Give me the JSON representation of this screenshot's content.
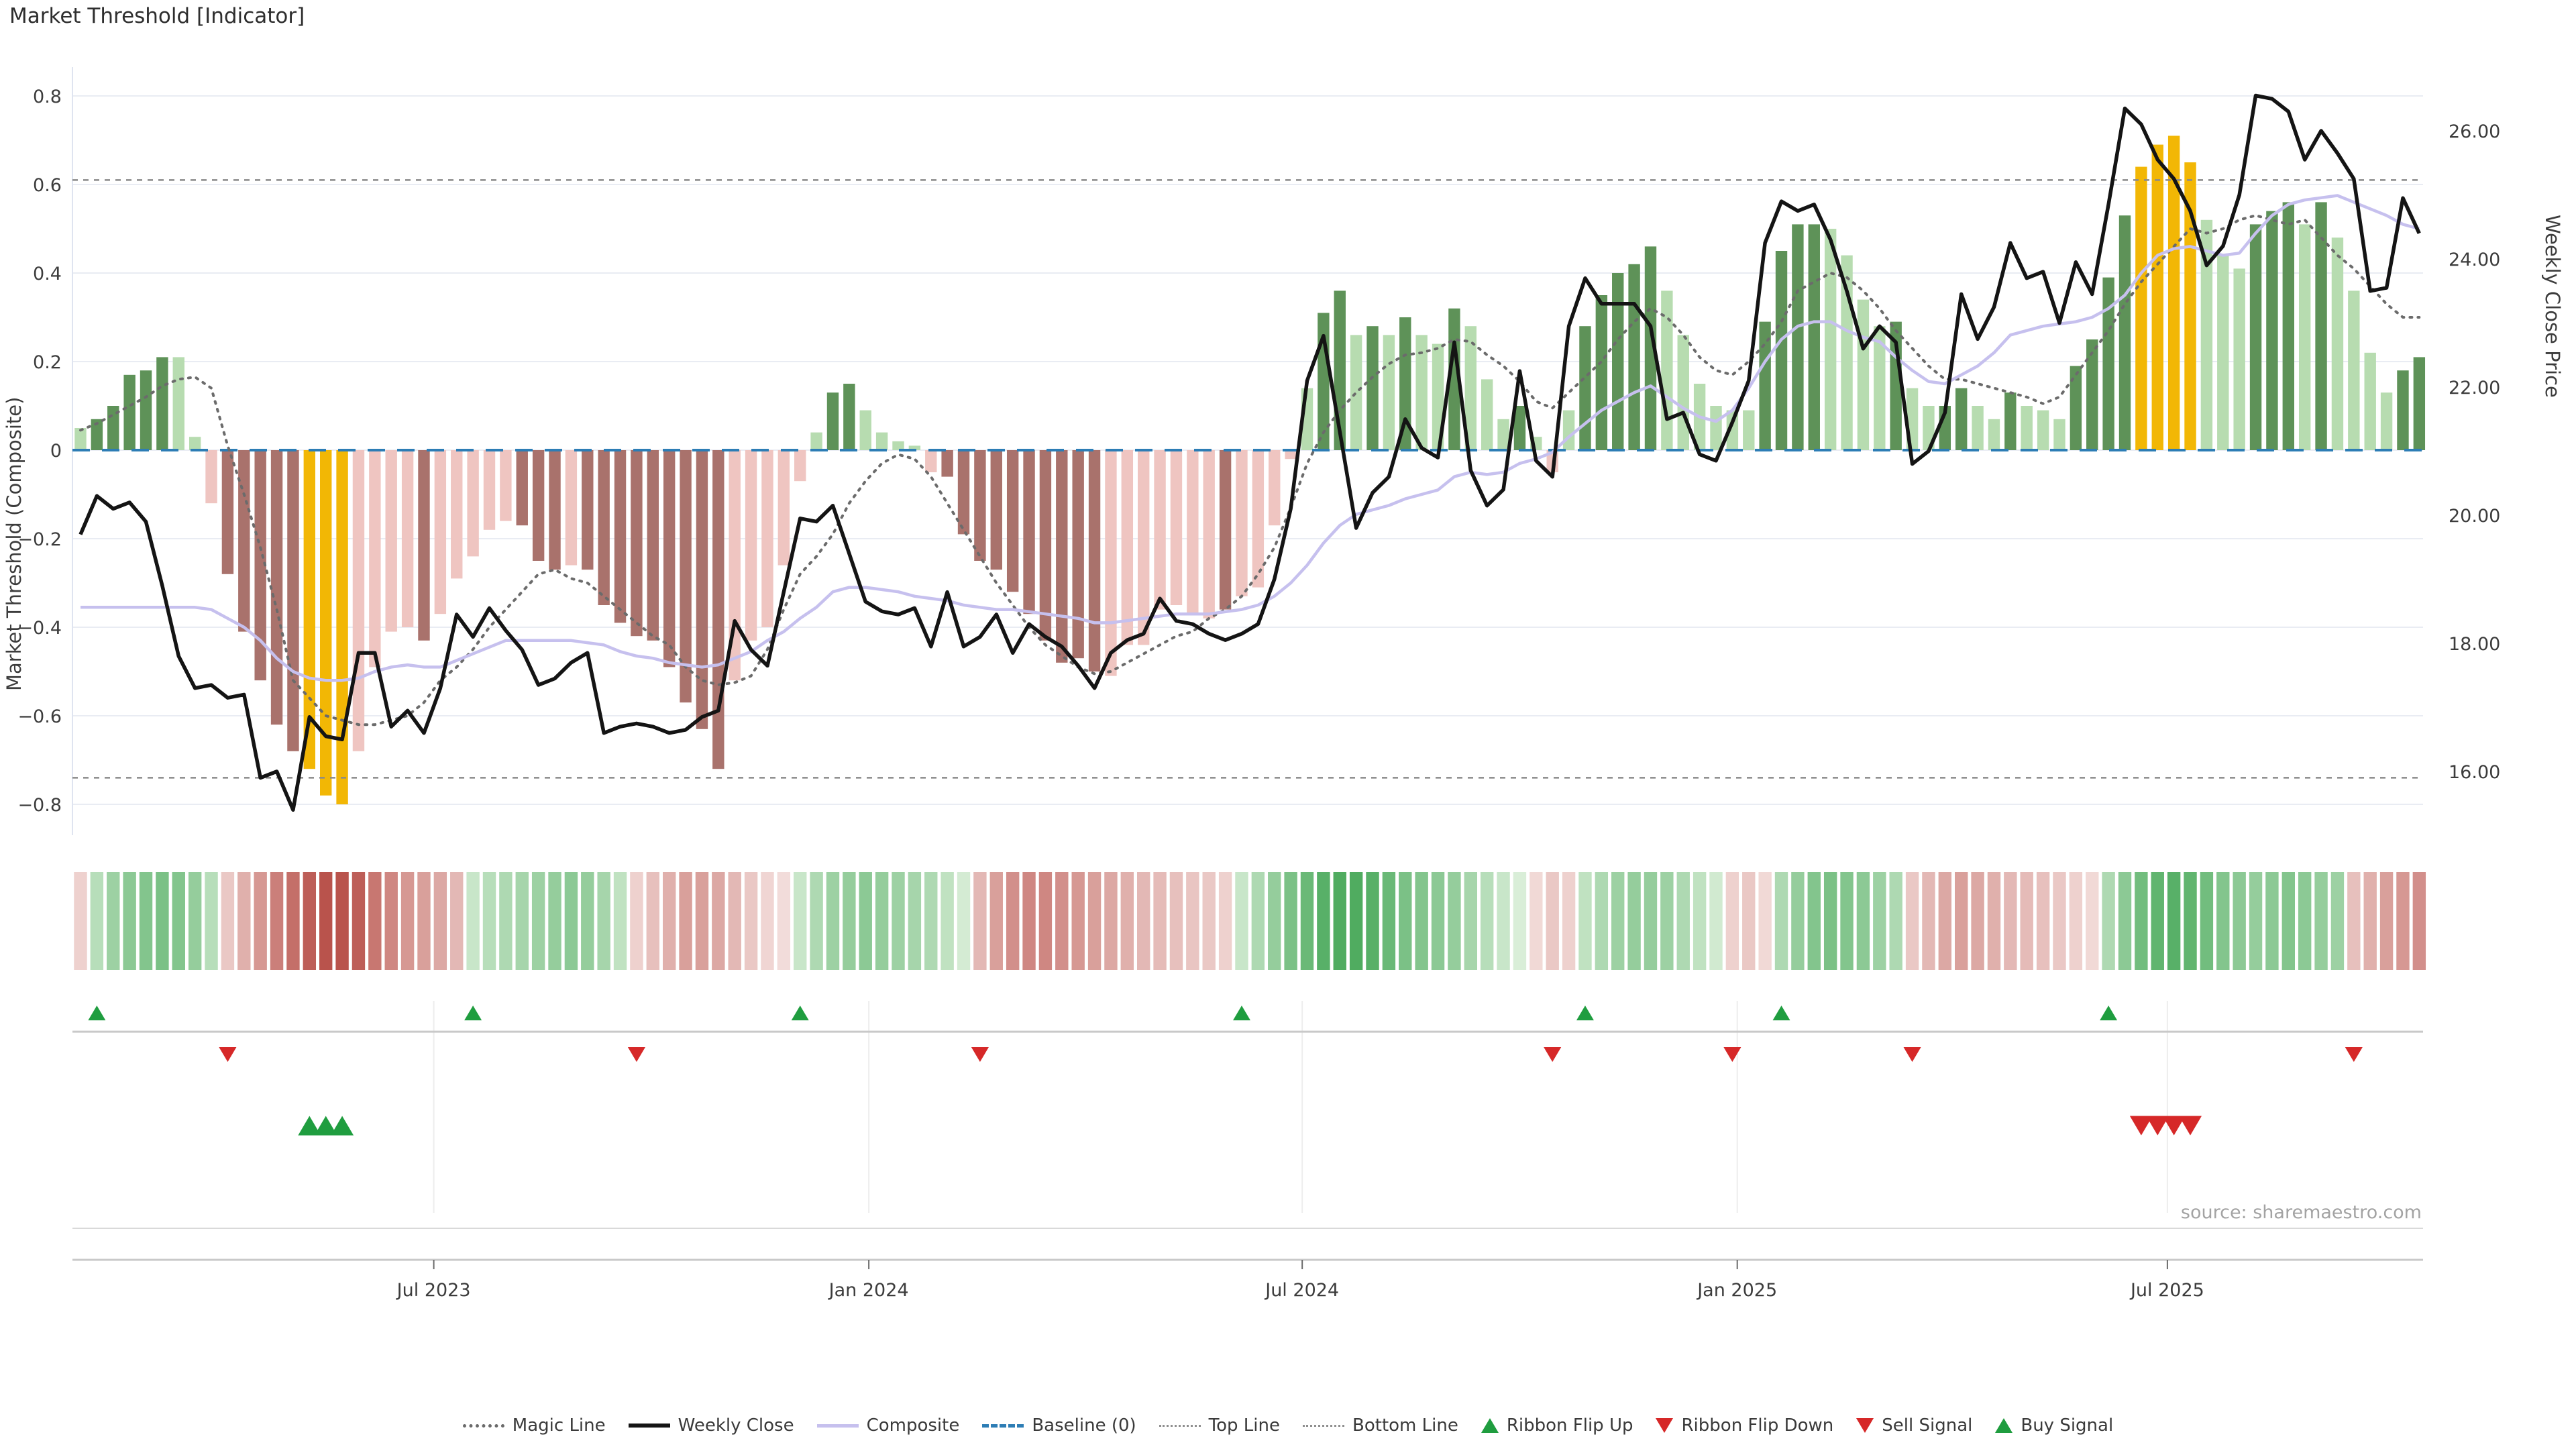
{
  "title": "Market Threshold [Indicator]",
  "source": "source: sharemaestro.com",
  "axes": {
    "y_left_title": "Market Threshold (Composite)",
    "y_right_title": "Weekly Close Price",
    "y_left_ticks": [
      0.8,
      0.6,
      0.4,
      0.2,
      0.0,
      -0.2,
      -0.4,
      -0.6,
      -0.8
    ],
    "y_left_tick_labels": [
      "0.8",
      "0.6",
      "0.4",
      "0.2",
      "0",
      "−0.2",
      "−0.4",
      "−0.6",
      "−0.8"
    ],
    "y_right_ticks": [
      26,
      24,
      22,
      20,
      18,
      16
    ],
    "y_right_tick_labels": [
      "26.00",
      "24.00",
      "22.00",
      "20.00",
      "18.00",
      "16.00"
    ],
    "x_tick_labels": [
      "Jul 2023",
      "Jan 2024",
      "Jul 2024",
      "Jan 2025",
      "Jul 2025"
    ],
    "x_tick_weeks": [
      21.6,
      48.2,
      74.7,
      101.3,
      127.6
    ]
  },
  "legend": [
    {
      "key": "magic-line",
      "label": "Magic Line",
      "swatch": "sw-magic"
    },
    {
      "key": "weekly-close",
      "label": "Weekly Close",
      "swatch": "sw-close"
    },
    {
      "key": "composite",
      "label": "Composite",
      "swatch": "sw-comp"
    },
    {
      "key": "baseline",
      "label": "Baseline (0)",
      "swatch": "sw-base"
    },
    {
      "key": "top-line",
      "label": "Top Line",
      "swatch": "sw-top"
    },
    {
      "key": "bottom-line",
      "label": "Bottom Line",
      "swatch": "sw-bottom"
    },
    {
      "key": "ribbon-flip-up",
      "label": "Ribbon Flip Up",
      "swatch": "tri-up"
    },
    {
      "key": "ribbon-flip-down",
      "label": "Ribbon Flip Down",
      "swatch": "tri-down"
    },
    {
      "key": "sell-signal",
      "label": "Sell Signal",
      "swatch": "tri-down"
    },
    {
      "key": "buy-signal",
      "label": "Buy Signal",
      "swatch": "tri-up"
    }
  ],
  "colors": {
    "bar_light_green": "#b7dcb0",
    "bar_dark_green": "#5e9258",
    "bar_light_red": "#efc5c1",
    "bar_dark_red": "#a9726c",
    "bar_gold": "#f2b705",
    "weekly_close": "#141414",
    "composite": "#c6c0ee",
    "magic": "#6b6b6b",
    "baseline": "#2d7db5",
    "threshold_lines": "#8a8a8a",
    "grid": "#e9ecf3",
    "signal_green": "#1f9d3f",
    "signal_red": "#d62828",
    "ribbon_green_max": "#36a04a",
    "ribbon_red_max": "#b3463f"
  },
  "chart_data": {
    "type": "mixed (weekly bars + lines + signal ribbon)",
    "title": "Market Threshold [Indicator]",
    "weeks": 144,
    "x_range_note": "weekly observations, Feb 2023 through Oct 2025",
    "ylim_left": [
      -0.9,
      0.87
    ],
    "ylim_right": [
      15.0,
      26.6
    ],
    "baseline": 0,
    "top_line": 0.61,
    "bottom_line": -0.74,
    "bar_values": [
      0.05,
      0.07,
      0.1,
      0.17,
      0.18,
      0.21,
      0.21,
      0.03,
      -0.12,
      -0.28,
      -0.41,
      -0.52,
      -0.62,
      -0.68,
      -0.72,
      -0.78,
      -0.8,
      -0.68,
      -0.49,
      -0.41,
      -0.4,
      -0.43,
      -0.37,
      -0.29,
      -0.24,
      -0.18,
      -0.16,
      -0.17,
      -0.25,
      -0.27,
      -0.26,
      -0.27,
      -0.35,
      -0.39,
      -0.42,
      -0.43,
      -0.49,
      -0.57,
      -0.63,
      -0.72,
      -0.52,
      -0.43,
      -0.4,
      -0.26,
      -0.07,
      0.04,
      0.13,
      0.15,
      0.09,
      0.04,
      0.02,
      0.01,
      -0.05,
      -0.06,
      -0.19,
      -0.25,
      -0.27,
      -0.32,
      -0.37,
      -0.43,
      -0.48,
      -0.47,
      -0.5,
      -0.51,
      -0.44,
      -0.44,
      -0.36,
      -0.35,
      -0.37,
      -0.38,
      -0.36,
      -0.33,
      -0.31,
      -0.17,
      -0.02,
      0.14,
      0.31,
      0.36,
      0.26,
      0.28,
      0.26,
      0.3,
      0.26,
      0.24,
      0.32,
      0.28,
      0.16,
      0.07,
      0.1,
      0.03,
      -0.05,
      0.09,
      0.28,
      0.35,
      0.4,
      0.42,
      0.46,
      0.36,
      0.26,
      0.15,
      0.1,
      0.09,
      0.09,
      0.29,
      0.45,
      0.51,
      0.51,
      0.5,
      0.44,
      0.34,
      0.28,
      0.29,
      0.14,
      0.1,
      0.1,
      0.14,
      0.1,
      0.07,
      0.13,
      0.1,
      0.09,
      0.07,
      0.19,
      0.25,
      0.39,
      0.53,
      0.64,
      0.69,
      0.71,
      0.65,
      0.52,
      0.44,
      0.41,
      0.51,
      0.54,
      0.56,
      0.51,
      0.56,
      0.48,
      0.36,
      0.22,
      0.13,
      0.18,
      0.21
    ],
    "bar_colors": [
      "lg",
      "dg",
      "dg",
      "dg",
      "dg",
      "dg",
      "lg",
      "lg",
      "lr",
      "dr",
      "dr",
      "dr",
      "dr",
      "dr",
      "au",
      "au",
      "au",
      "lr",
      "lr",
      "lr",
      "lr",
      "dr",
      "lr",
      "lr",
      "lr",
      "lr",
      "lr",
      "dr",
      "dr",
      "dr",
      "lr",
      "dr",
      "dr",
      "dr",
      "dr",
      "dr",
      "dr",
      "dr",
      "dr",
      "dr",
      "lr",
      "lr",
      "lr",
      "lr",
      "lr",
      "lg",
      "dg",
      "dg",
      "lg",
      "lg",
      "lg",
      "lg",
      "lr",
      "dr",
      "dr",
      "dr",
      "dr",
      "dr",
      "dr",
      "dr",
      "dr",
      "dr",
      "dr",
      "lr",
      "lr",
      "lr",
      "lr",
      "lr",
      "lr",
      "lr",
      "dr",
      "lr",
      "lr",
      "lr",
      "lr",
      "lg",
      "dg",
      "dg",
      "lg",
      "dg",
      "lg",
      "dg",
      "lg",
      "lg",
      "dg",
      "lg",
      "lg",
      "lg",
      "dg",
      "lg",
      "lr",
      "lg",
      "dg",
      "dg",
      "dg",
      "dg",
      "dg",
      "lg",
      "lg",
      "lg",
      "lg",
      "lg",
      "lg",
      "dg",
      "dg",
      "dg",
      "dg",
      "lg",
      "lg",
      "lg",
      "lg",
      "dg",
      "lg",
      "lg",
      "dg",
      "dg",
      "lg",
      "lg",
      "dg",
      "lg",
      "lg",
      "lg",
      "dg",
      "dg",
      "dg",
      "dg",
      "au",
      "au",
      "au",
      "au",
      "lg",
      "lg",
      "lg",
      "dg",
      "dg",
      "dg",
      "lg",
      "dg",
      "lg",
      "lg",
      "lg",
      "lg",
      "dg",
      "dg"
    ],
    "weekly_close": [
      19.7,
      20.3,
      20.1,
      20.2,
      19.9,
      18.9,
      17.8,
      17.3,
      17.35,
      17.15,
      17.2,
      15.9,
      16.0,
      15.4,
      16.85,
      16.55,
      16.5,
      17.85,
      17.85,
      16.7,
      16.95,
      16.6,
      17.3,
      18.45,
      18.1,
      18.55,
      18.2,
      17.9,
      17.35,
      17.45,
      17.7,
      17.85,
      16.6,
      16.7,
      16.75,
      16.7,
      16.6,
      16.65,
      16.85,
      16.95,
      18.35,
      17.9,
      17.65,
      18.8,
      19.95,
      19.9,
      20.15,
      19.4,
      18.65,
      18.5,
      18.45,
      18.55,
      17.95,
      18.8,
      17.95,
      18.1,
      18.45,
      17.85,
      18.3,
      18.1,
      17.95,
      17.65,
      17.3,
      17.85,
      18.05,
      18.15,
      18.7,
      18.35,
      18.3,
      18.15,
      18.05,
      18.15,
      18.3,
      19.0,
      20.1,
      22.1,
      22.8,
      21.3,
      19.8,
      20.35,
      20.6,
      21.5,
      21.05,
      20.9,
      22.7,
      20.7,
      20.15,
      20.4,
      22.25,
      20.85,
      20.6,
      22.95,
      23.7,
      23.3,
      23.3,
      23.3,
      22.95,
      21.5,
      21.6,
      20.95,
      20.85,
      21.45,
      22.1,
      24.25,
      24.9,
      24.75,
      24.85,
      24.3,
      23.5,
      22.6,
      22.95,
      22.7,
      20.8,
      21.0,
      21.6,
      23.45,
      22.75,
      23.25,
      24.25,
      23.7,
      23.8,
      23.0,
      23.95,
      23.45,
      24.85,
      26.35,
      26.1,
      25.55,
      25.25,
      24.75,
      23.9,
      24.2,
      25.0,
      26.55,
      26.5,
      26.3,
      25.55,
      26.0,
      25.65,
      25.25,
      23.5,
      23.55,
      24.95,
      24.4
    ],
    "composite": [
      -0.355,
      -0.355,
      -0.355,
      -0.355,
      -0.355,
      -0.355,
      -0.355,
      -0.355,
      -0.36,
      -0.38,
      -0.4,
      -0.43,
      -0.47,
      -0.5,
      -0.515,
      -0.52,
      -0.52,
      -0.515,
      -0.5,
      -0.49,
      -0.485,
      -0.49,
      -0.49,
      -0.475,
      -0.46,
      -0.445,
      -0.43,
      -0.43,
      -0.43,
      -0.43,
      -0.43,
      -0.435,
      -0.44,
      -0.455,
      -0.465,
      -0.47,
      -0.48,
      -0.485,
      -0.49,
      -0.485,
      -0.47,
      -0.455,
      -0.43,
      -0.41,
      -0.38,
      -0.355,
      -0.32,
      -0.31,
      -0.31,
      -0.315,
      -0.32,
      -0.33,
      -0.335,
      -0.34,
      -0.35,
      -0.355,
      -0.36,
      -0.36,
      -0.365,
      -0.37,
      -0.375,
      -0.38,
      -0.39,
      -0.39,
      -0.385,
      -0.38,
      -0.375,
      -0.37,
      -0.37,
      -0.37,
      -0.365,
      -0.36,
      -0.35,
      -0.33,
      -0.3,
      -0.26,
      -0.21,
      -0.17,
      -0.145,
      -0.135,
      -0.125,
      -0.11,
      -0.1,
      -0.09,
      -0.06,
      -0.05,
      -0.055,
      -0.05,
      -0.03,
      -0.02,
      -0.005,
      0.03,
      0.06,
      0.09,
      0.11,
      0.13,
      0.145,
      0.12,
      0.095,
      0.075,
      0.065,
      0.09,
      0.14,
      0.2,
      0.25,
      0.28,
      0.29,
      0.29,
      0.27,
      0.255,
      0.245,
      0.21,
      0.18,
      0.155,
      0.15,
      0.17,
      0.19,
      0.22,
      0.26,
      0.27,
      0.28,
      0.285,
      0.29,
      0.3,
      0.32,
      0.35,
      0.4,
      0.44,
      0.455,
      0.46,
      0.45,
      0.44,
      0.445,
      0.49,
      0.53,
      0.555,
      0.565,
      0.57,
      0.575,
      0.56,
      0.545,
      0.53,
      0.51,
      0.5
    ],
    "magic_line": [
      0.045,
      0.06,
      0.08,
      0.1,
      0.12,
      0.145,
      0.16,
      0.165,
      0.14,
      0.01,
      -0.1,
      -0.22,
      -0.36,
      -0.52,
      -0.56,
      -0.6,
      -0.61,
      -0.62,
      -0.62,
      -0.61,
      -0.6,
      -0.57,
      -0.52,
      -0.49,
      -0.45,
      -0.4,
      -0.36,
      -0.32,
      -0.28,
      -0.27,
      -0.29,
      -0.3,
      -0.33,
      -0.36,
      -0.39,
      -0.42,
      -0.44,
      -0.49,
      -0.52,
      -0.53,
      -0.525,
      -0.51,
      -0.45,
      -0.36,
      -0.28,
      -0.24,
      -0.19,
      -0.12,
      -0.07,
      -0.03,
      -0.01,
      -0.02,
      -0.06,
      -0.12,
      -0.18,
      -0.24,
      -0.3,
      -0.35,
      -0.4,
      -0.44,
      -0.465,
      -0.49,
      -0.505,
      -0.5,
      -0.48,
      -0.46,
      -0.44,
      -0.42,
      -0.41,
      -0.38,
      -0.36,
      -0.33,
      -0.28,
      -0.22,
      -0.13,
      -0.03,
      0.04,
      0.09,
      0.13,
      0.165,
      0.195,
      0.215,
      0.22,
      0.23,
      0.25,
      0.245,
      0.215,
      0.19,
      0.155,
      0.11,
      0.095,
      0.13,
      0.165,
      0.2,
      0.25,
      0.29,
      0.32,
      0.3,
      0.26,
      0.21,
      0.18,
      0.17,
      0.2,
      0.24,
      0.29,
      0.36,
      0.38,
      0.4,
      0.39,
      0.36,
      0.32,
      0.27,
      0.23,
      0.19,
      0.16,
      0.16,
      0.15,
      0.14,
      0.13,
      0.12,
      0.105,
      0.12,
      0.17,
      0.22,
      0.27,
      0.33,
      0.38,
      0.42,
      0.46,
      0.5,
      0.49,
      0.5,
      0.52,
      0.53,
      0.52,
      0.51,
      0.52,
      0.48,
      0.44,
      0.41,
      0.37,
      0.33,
      0.3,
      0.3
    ],
    "ribbon": [
      -0.15,
      0.25,
      0.4,
      0.5,
      0.55,
      0.6,
      0.55,
      0.45,
      0.25,
      -0.2,
      -0.35,
      -0.5,
      -0.65,
      -0.75,
      -0.85,
      -0.92,
      -0.92,
      -0.85,
      -0.7,
      -0.6,
      -0.5,
      -0.45,
      -0.4,
      -0.3,
      0.15,
      0.25,
      0.3,
      0.35,
      0.4,
      0.45,
      0.5,
      0.45,
      0.35,
      0.2,
      -0.15,
      -0.25,
      -0.35,
      -0.45,
      -0.45,
      -0.4,
      -0.3,
      -0.2,
      -0.12,
      -0.08,
      0.15,
      0.3,
      0.4,
      0.45,
      0.5,
      0.45,
      0.4,
      0.35,
      0.3,
      0.2,
      0.08,
      -0.3,
      -0.45,
      -0.55,
      -0.6,
      -0.6,
      -0.55,
      -0.5,
      -0.45,
      -0.4,
      -0.35,
      -0.3,
      -0.28,
      -0.25,
      -0.22,
      -0.2,
      -0.15,
      0.15,
      0.3,
      0.45,
      0.6,
      0.7,
      0.8,
      0.85,
      0.85,
      0.8,
      0.7,
      0.6,
      0.55,
      0.5,
      0.45,
      0.35,
      0.25,
      0.15,
      0.05,
      -0.1,
      -0.2,
      -0.15,
      0.2,
      0.3,
      0.4,
      0.45,
      0.45,
      0.4,
      0.3,
      0.2,
      0.1,
      -0.15,
      -0.2,
      -0.1,
      0.3,
      0.45,
      0.55,
      0.6,
      0.55,
      0.5,
      0.4,
      0.3,
      -0.2,
      -0.3,
      -0.4,
      -0.45,
      -0.4,
      -0.35,
      -0.3,
      -0.28,
      -0.25,
      -0.2,
      -0.15,
      -0.1,
      0.3,
      0.5,
      0.65,
      0.75,
      0.8,
      0.75,
      0.65,
      0.55,
      0.5,
      0.45,
      0.5,
      0.55,
      0.5,
      0.45,
      0.4,
      -0.25,
      -0.35,
      -0.45,
      -0.5,
      -0.55
    ],
    "signals": {
      "ribbon_flip_up_weeks": [
        1,
        24,
        44,
        71,
        92,
        104,
        124
      ],
      "ribbon_flip_down_weeks": [
        9,
        34,
        55,
        90,
        101,
        112,
        139
      ],
      "buy_signal_weeks": [
        14,
        15,
        16
      ],
      "sell_signal_weeks": [
        126,
        127,
        128,
        129
      ]
    }
  }
}
